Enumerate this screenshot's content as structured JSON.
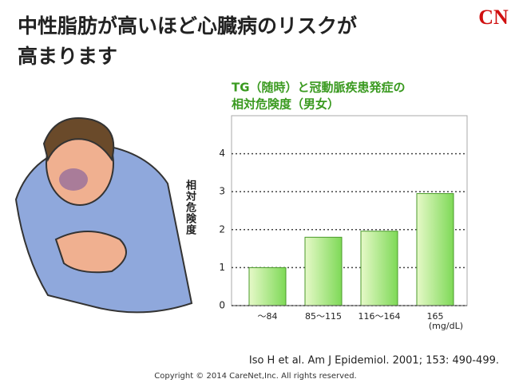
{
  "slide_title": [
    "中性脂肪が高いほど心臓病のリスクが",
    "高まります"
  ],
  "logo": "CN",
  "chart_data": {
    "type": "bar",
    "title": [
      "TG（随時）と冠動脈疾患発症の",
      "相対危険度（男女）"
    ],
    "y_label": "相対危険度",
    "x_unit": "(mg/dL)",
    "categories": [
      "～84",
      "85～115",
      "116～164",
      "165"
    ],
    "values": [
      1.0,
      1.8,
      1.96,
      2.95
    ],
    "color": "#7ed957",
    "ylim": [
      0,
      5
    ],
    "yticks": [
      0,
      1,
      2,
      3,
      4
    ],
    "grid": true
  },
  "citation": "Iso H et al. Am J Epidemiol. 2001; 153: 490-499.",
  "copyright": "Copyright © 2014 CareNet,Inc. All rights reserved."
}
